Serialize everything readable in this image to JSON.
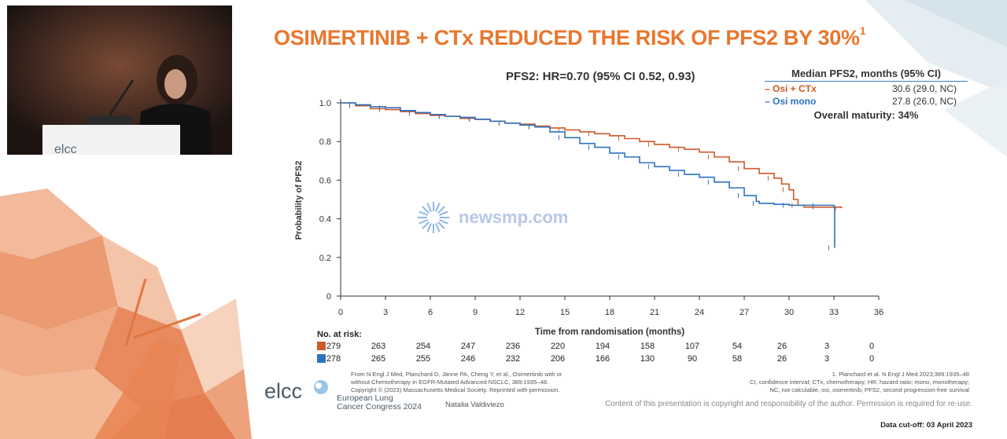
{
  "slide": {
    "title": "OSIMERTINIB + CTx REDUCED THE RISK OF PFS2 BY 30%",
    "title_sup": "1",
    "hr_text": "PFS2: HR=0.70 (95% CI 0.52, 0.93)"
  },
  "median_box": {
    "title": "Median PFS2, months (95% CI)",
    "rows": [
      {
        "label": "– Osi + CTx",
        "value": "30.6 (29.0, NC)",
        "color": "#cd5a2a"
      },
      {
        "label": "– Osi mono",
        "value": "27.8 (26.0, NC)",
        "color": "#2f72c0"
      }
    ],
    "maturity": "Overall maturity: 34%"
  },
  "chart_data": {
    "type": "line",
    "xlabel": "Time from randomisation (months)",
    "ylabel": "Probability of PFS2",
    "xlim": [
      0,
      36
    ],
    "ylim": [
      0,
      1.0
    ],
    "xticks": [
      0,
      3,
      6,
      9,
      12,
      15,
      18,
      21,
      24,
      27,
      30,
      33,
      36
    ],
    "yticks": [
      "0",
      "0.2",
      "0.4",
      "0.6",
      "0.8",
      "1.0"
    ],
    "series": [
      {
        "name": "Osi + CTx",
        "color": "#cd5a2a",
        "x": [
          0,
          1,
          2,
          3,
          4,
          5,
          6,
          7,
          8,
          9,
          10,
          11,
          12,
          13,
          14,
          15,
          16,
          17,
          18,
          19,
          20,
          21,
          22,
          23,
          24,
          25,
          26,
          27,
          28,
          29,
          29.5,
          30,
          30.3,
          30.6,
          31,
          32,
          33,
          33.5
        ],
        "y": [
          1.0,
          0.985,
          0.97,
          0.965,
          0.955,
          0.945,
          0.935,
          0.93,
          0.92,
          0.915,
          0.905,
          0.895,
          0.89,
          0.88,
          0.87,
          0.86,
          0.85,
          0.84,
          0.83,
          0.815,
          0.8,
          0.785,
          0.77,
          0.76,
          0.745,
          0.72,
          0.695,
          0.66,
          0.635,
          0.61,
          0.58,
          0.55,
          0.5,
          0.47,
          0.46,
          0.46,
          0.46,
          0.455
        ]
      },
      {
        "name": "Osi mono",
        "color": "#2f72c0",
        "x": [
          0,
          1,
          2,
          3,
          4,
          5,
          6,
          7,
          8,
          9,
          10,
          11,
          12,
          13,
          14,
          15,
          16,
          17,
          18,
          19,
          20,
          21,
          22,
          23,
          24,
          25,
          26,
          27,
          27.8,
          28,
          29,
          30,
          31,
          32,
          33,
          33.05
        ],
        "y": [
          1.0,
          0.99,
          0.98,
          0.975,
          0.96,
          0.95,
          0.94,
          0.93,
          0.925,
          0.915,
          0.905,
          0.895,
          0.885,
          0.875,
          0.85,
          0.82,
          0.79,
          0.77,
          0.74,
          0.72,
          0.69,
          0.67,
          0.65,
          0.63,
          0.615,
          0.59,
          0.56,
          0.52,
          0.49,
          0.48,
          0.475,
          0.47,
          0.47,
          0.47,
          0.46,
          0.25
        ]
      }
    ],
    "risk_table": {
      "label": "No. at risk:",
      "rows": [
        {
          "color": "#cd5a2a",
          "values": [
            "279",
            "263",
            "254",
            "247",
            "236",
            "220",
            "194",
            "158",
            "107",
            "54",
            "26",
            "3",
            "0"
          ]
        },
        {
          "color": "#2f72c0",
          "values": [
            "278",
            "265",
            "255",
            "246",
            "232",
            "206",
            "166",
            "130",
            "90",
            "58",
            "26",
            "3",
            "0"
          ]
        }
      ]
    }
  },
  "footer": {
    "source_lines": [
      "From N Engl J Med, Planchard D, Jänne PA, Cheng Y, et al., Osimertinib with or",
      "without Chemotherapy in EGFR-Mutated Advanced NSCLC, 389:1935–48.",
      "Copyright © (2023) Massachusetts Medical Society. Reprinted with permission."
    ],
    "ref_lines": [
      "1. Planchard et al. N Engl J Med 2023;389:1935–48",
      "CI, confidence interval; CTx, chemotherapy; HR, hazard ratio; mono, monotherapy;",
      "NC, not calculable, osi, osimertinib; PFS2, second progression-free survival"
    ],
    "speaker": "Natalia Valdiviezo",
    "copyright": "Content of this presentation is copyright and responsibility of the author. Permission is required for re-use.",
    "cutoff": "Data cut-off: 03 April 2023"
  },
  "logo": {
    "text": "elcc",
    "sub1": "European Lung",
    "sub2": "Cancer Congress 2024"
  },
  "watermark": "newsmp.com"
}
